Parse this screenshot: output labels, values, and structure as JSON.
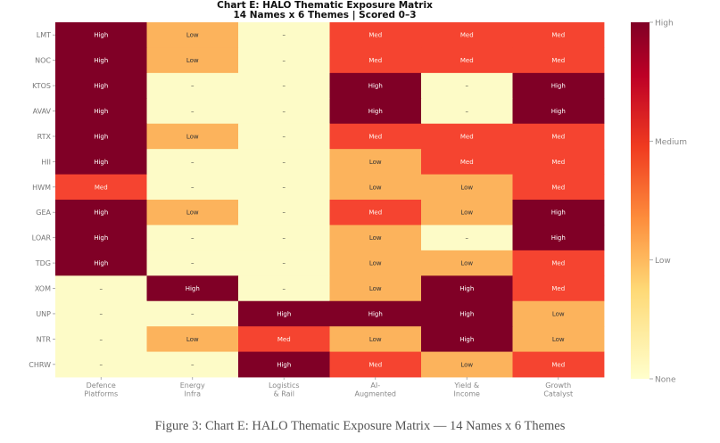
{
  "chart_data": {
    "type": "heatmap",
    "title": "Chart E: HALO Thematic Exposure Matrix",
    "subtitle": "14 Names x 6 Themes | Scored 0–3",
    "rows": [
      "LMT",
      "NOC",
      "KTOS",
      "AVAV",
      "RTX",
      "HII",
      "HWM",
      "GEA",
      "LOAR",
      "TDG",
      "XOM",
      "UNP",
      "NTR",
      "CHRW"
    ],
    "columns": [
      "Defence\nPlatforms",
      "Energy\nInfra",
      "Logistics\n& Rail",
      "AI-\nAugmented",
      "Yield &\nIncome",
      "Growth\nCatalyst"
    ],
    "values": [
      [
        3,
        1,
        0,
        2,
        2,
        2
      ],
      [
        3,
        1,
        0,
        2,
        2,
        2
      ],
      [
        3,
        0,
        0,
        3,
        0,
        3
      ],
      [
        3,
        0,
        0,
        3,
        0,
        3
      ],
      [
        3,
        1,
        0,
        2,
        2,
        2
      ],
      [
        3,
        0,
        0,
        1,
        2,
        2
      ],
      [
        2,
        0,
        0,
        1,
        1,
        2
      ],
      [
        3,
        1,
        0,
        2,
        1,
        3
      ],
      [
        3,
        0,
        0,
        1,
        0,
        3
      ],
      [
        3,
        0,
        0,
        1,
        1,
        2
      ],
      [
        0,
        3,
        0,
        1,
        3,
        2
      ],
      [
        0,
        0,
        3,
        3,
        3,
        1
      ],
      [
        0,
        1,
        2,
        1,
        3,
        1
      ],
      [
        0,
        0,
        3,
        2,
        1,
        2
      ]
    ],
    "score_labels": [
      "–",
      "Low",
      "Med",
      "High"
    ],
    "colorbar": {
      "ticks": [
        0,
        1,
        2,
        3
      ],
      "labels": [
        "None",
        "Low",
        "Medium",
        "High"
      ]
    },
    "colors": [
      "#fdfbc7",
      "#fcb35c",
      "#f54430",
      "#800026"
    ],
    "range": [
      0,
      3
    ]
  },
  "caption": "Figure 3: Chart E: HALO Thematic Exposure Matrix — 14 Names x 6 Themes"
}
